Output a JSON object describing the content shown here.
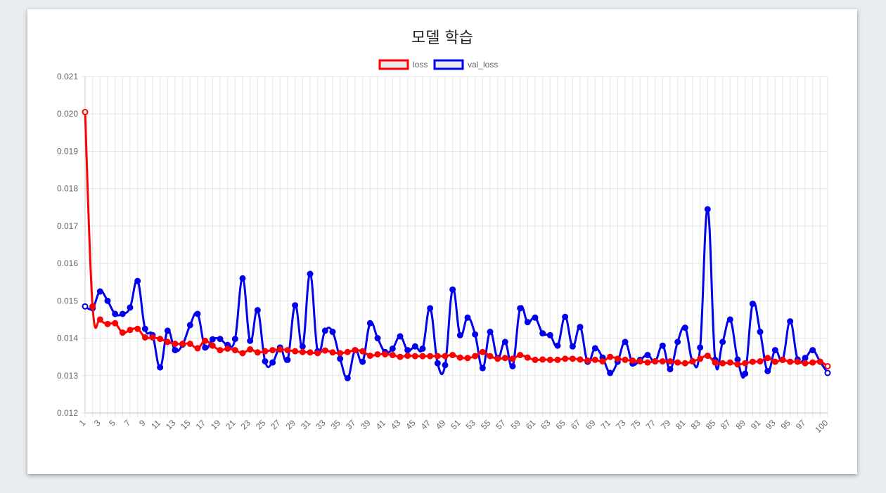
{
  "chart_data": {
    "type": "line",
    "title": "모델 학습",
    "xlabel": "",
    "ylabel": "",
    "ylim": [
      0.012,
      0.021
    ],
    "y_ticks": [
      "0.021",
      "0.020",
      "0.019",
      "0.018",
      "0.017",
      "0.016",
      "0.015",
      "0.014",
      "0.013",
      "0.012"
    ],
    "x_tick_labels": [
      "1",
      "3",
      "5",
      "7",
      "9",
      "11",
      "13",
      "15",
      "17",
      "19",
      "21",
      "23",
      "25",
      "27",
      "29",
      "31",
      "33",
      "35",
      "37",
      "39",
      "41",
      "43",
      "45",
      "47",
      "49",
      "51",
      "53",
      "55",
      "57",
      "59",
      "61",
      "63",
      "65",
      "67",
      "69",
      "71",
      "73",
      "75",
      "77",
      "79",
      "81",
      "83",
      "85",
      "87",
      "89",
      "91",
      "93",
      "95",
      "97",
      "100"
    ],
    "grid": true,
    "legend_position": "top-center",
    "x": [
      1,
      2,
      3,
      4,
      5,
      6,
      7,
      8,
      9,
      10,
      11,
      12,
      13,
      14,
      15,
      16,
      17,
      18,
      19,
      20,
      21,
      22,
      23,
      24,
      25,
      26,
      27,
      28,
      29,
      30,
      31,
      32,
      33,
      34,
      35,
      36,
      37,
      38,
      39,
      40,
      41,
      42,
      43,
      44,
      45,
      46,
      47,
      48,
      49,
      50,
      51,
      52,
      53,
      54,
      55,
      56,
      57,
      58,
      59,
      60,
      61,
      62,
      63,
      64,
      65,
      66,
      67,
      68,
      69,
      70,
      71,
      72,
      73,
      74,
      75,
      76,
      77,
      78,
      79,
      80,
      81,
      82,
      83,
      84,
      85,
      86,
      87,
      88,
      89,
      90,
      91,
      92,
      93,
      94,
      95,
      96,
      97,
      98,
      99,
      100
    ],
    "series": [
      {
        "name": "loss",
        "color": "#ff0000",
        "values": [
          0.02005,
          0.01485,
          0.0145,
          0.01438,
          0.0144,
          0.01415,
          0.01422,
          0.01425,
          0.01402,
          0.01402,
          0.01398,
          0.0139,
          0.01385,
          0.01385,
          0.01385,
          0.01373,
          0.01393,
          0.0138,
          0.01368,
          0.01372,
          0.01368,
          0.0136,
          0.0137,
          0.01362,
          0.01365,
          0.01368,
          0.0137,
          0.01368,
          0.01365,
          0.01363,
          0.01362,
          0.0136,
          0.01367,
          0.01362,
          0.0136,
          0.01363,
          0.01368,
          0.01365,
          0.01353,
          0.01357,
          0.01357,
          0.01355,
          0.0135,
          0.01353,
          0.01352,
          0.01352,
          0.01352,
          0.01352,
          0.01352,
          0.01355,
          0.01348,
          0.01347,
          0.01352,
          0.01363,
          0.01352,
          0.01345,
          0.01347,
          0.01345,
          0.01355,
          0.01348,
          0.01342,
          0.01343,
          0.01342,
          0.01342,
          0.01345,
          0.01345,
          0.01343,
          0.0134,
          0.01342,
          0.01338,
          0.0135,
          0.01345,
          0.01342,
          0.0134,
          0.01338,
          0.01335,
          0.01338,
          0.01338,
          0.01338,
          0.01335,
          0.01333,
          0.01338,
          0.01345,
          0.01353,
          0.01335,
          0.01333,
          0.01335,
          0.0133,
          0.01333,
          0.01337,
          0.01338,
          0.01347,
          0.01337,
          0.01342,
          0.01337,
          0.01337,
          0.01333,
          0.01335,
          0.01337,
          0.01325
        ]
      },
      {
        "name": "val_loss",
        "color": "#0000ee",
        "values": [
          0.01485,
          0.0148,
          0.01525,
          0.015,
          0.01465,
          0.01465,
          0.01482,
          0.01553,
          0.01425,
          0.01408,
          0.01322,
          0.0142,
          0.01368,
          0.01383,
          0.01435,
          0.01465,
          0.01375,
          0.01397,
          0.01398,
          0.01382,
          0.01398,
          0.0156,
          0.01393,
          0.01475,
          0.01338,
          0.01335,
          0.01375,
          0.01342,
          0.01488,
          0.01378,
          0.01572,
          0.01365,
          0.0142,
          0.01417,
          0.01345,
          0.01293,
          0.01368,
          0.01337,
          0.0144,
          0.014,
          0.01363,
          0.01372,
          0.01405,
          0.01368,
          0.01378,
          0.01372,
          0.0148,
          0.01333,
          0.01328,
          0.0153,
          0.01408,
          0.01455,
          0.0141,
          0.0132,
          0.01417,
          0.01347,
          0.0139,
          0.01325,
          0.0148,
          0.01443,
          0.01455,
          0.01413,
          0.01408,
          0.0138,
          0.01457,
          0.01378,
          0.0143,
          0.01337,
          0.01373,
          0.01348,
          0.01307,
          0.01337,
          0.0139,
          0.01332,
          0.01342,
          0.01355,
          0.01338,
          0.0138,
          0.01317,
          0.0139,
          0.01428,
          0.01338,
          0.01375,
          0.01745,
          0.01342,
          0.0139,
          0.0145,
          0.01343,
          0.01305,
          0.01492,
          0.01417,
          0.01312,
          0.01368,
          0.01342,
          0.01445,
          0.01343,
          0.01347,
          0.01368,
          0.01337,
          0.01307
        ]
      }
    ]
  }
}
